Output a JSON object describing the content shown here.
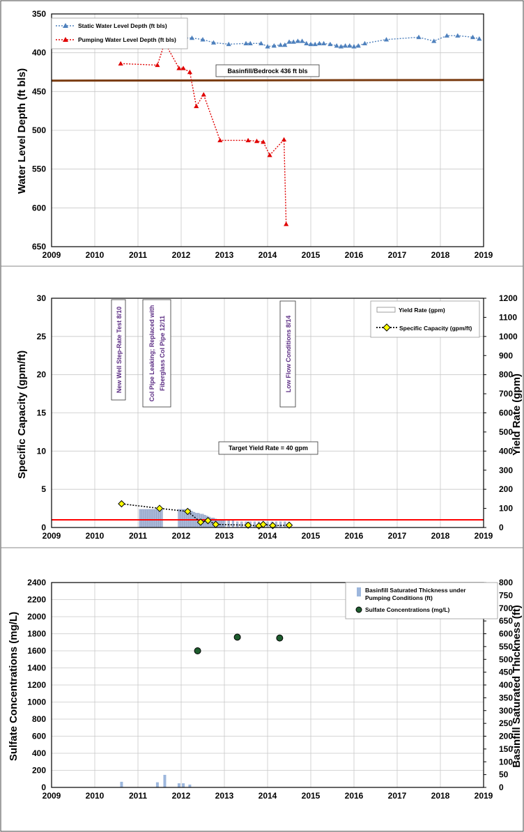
{
  "charts": [
    {
      "ylabel": "Water Level Depth (ft bls)",
      "y_ticks": [
        "350",
        "400",
        "450",
        "500",
        "550",
        "600",
        "650"
      ],
      "x_ticks": [
        "2009",
        "2010",
        "2011",
        "2012",
        "2013",
        "2014",
        "2015",
        "2016",
        "2017",
        "2018",
        "2019"
      ],
      "legend": [
        "Static Water Level Depth (ft bls)",
        "Pumping Water Level Depth (ft bls)"
      ],
      "annotations": [
        "Basinfill/Bedrock 436 ft bls"
      ]
    },
    {
      "ylabel_left": "Specific Capacity (gpm/ft)",
      "ylabel_right": "Yield Rate (gpm)",
      "y_ticks_left": [
        "0",
        "5",
        "10",
        "15",
        "20",
        "25",
        "30"
      ],
      "y_ticks_right": [
        "0",
        "100",
        "200",
        "300",
        "400",
        "500",
        "600",
        "700",
        "800",
        "900",
        "1000",
        "1100",
        "1200"
      ],
      "x_ticks": [
        "2009",
        "2010",
        "2011",
        "2012",
        "2013",
        "2014",
        "2015",
        "2016",
        "2017",
        "2018",
        "2019"
      ],
      "legend": [
        "Yield Rate (gpm)",
        "Specific Capacity (gpm/ft)"
      ],
      "annotations": [
        "New Well Step-Rate Test 8/10",
        "Col Pipe Leaking; Replaced with",
        "Fiberglass Col Pipe 12/11",
        "Low Flow Conditions 8/14",
        "Target Yield Rate = 40 gpm"
      ]
    },
    {
      "ylabel_left": "Sulfate Concentrations (mg/L)",
      "ylabel_right": "Basinfill Saturated Thickness (ft)",
      "y_ticks_left": [
        "0",
        "200",
        "400",
        "600",
        "800",
        "1000",
        "1200",
        "1400",
        "1600",
        "1800",
        "2000",
        "2200",
        "2400"
      ],
      "y_ticks_right": [
        "0",
        "50",
        "100",
        "150",
        "200",
        "250",
        "300",
        "350",
        "400",
        "450",
        "500",
        "550",
        "600",
        "650",
        "700",
        "750",
        "800"
      ],
      "x_ticks": [
        "2009",
        "2010",
        "2011",
        "2012",
        "2013",
        "2014",
        "2015",
        "2016",
        "2017",
        "2018",
        "2019"
      ],
      "legend": [
        "Basinfill Saturated Thickness under",
        "Pumping Conditions (ft)",
        "Sulfate Concentrations (mg/L)"
      ]
    }
  ],
  "chart_data": [
    {
      "type": "line",
      "xlabel": "",
      "ylabel": "Water Level Depth (ft bls)",
      "xlim": [
        2009,
        2019
      ],
      "ylim": [
        650,
        350
      ],
      "y_inverted": true,
      "grid": true,
      "legend_position": "top-left",
      "colors": {
        "static": "#4f81bd",
        "pumping": "#e00000",
        "bedrock": "#7a3b10"
      },
      "series": [
        {
          "name": "Static Water Level Depth (ft bls)",
          "x": [
            2011.55,
            2011.75,
            2012.0,
            2012.25,
            2012.5,
            2012.75,
            2013.1,
            2013.5,
            2013.6,
            2013.85,
            2014.0,
            2014.15,
            2014.3,
            2014.4,
            2014.5,
            2014.6,
            2014.7,
            2014.8,
            2014.9,
            2015.0,
            2015.1,
            2015.2,
            2015.3,
            2015.45,
            2015.6,
            2015.7,
            2015.8,
            2015.9,
            2016.0,
            2016.1,
            2016.25,
            2016.75,
            2017.5,
            2017.85,
            2018.15,
            2018.4,
            2018.75,
            2018.9
          ],
          "y": [
            381,
            381,
            381,
            381,
            383,
            387,
            389,
            388,
            388,
            388,
            392,
            391,
            390,
            390,
            386,
            386,
            385,
            385,
            388,
            389,
            389,
            388,
            388,
            389,
            391,
            392,
            391,
            391,
            392,
            391,
            388,
            383,
            380,
            385,
            378,
            378,
            380,
            382
          ]
        },
        {
          "name": "Pumping Water Level Depth (ft bls)",
          "x": [
            2010.6,
            2011.45,
            2011.62,
            2011.95,
            2012.05,
            2012.2,
            2012.35,
            2012.52,
            2012.9,
            2013.55,
            2013.75,
            2013.9,
            2014.05,
            2014.38,
            2014.43
          ],
          "y": [
            414,
            416,
            387,
            420,
            420,
            425,
            469,
            454,
            513,
            513,
            514,
            515,
            532,
            512,
            621
          ]
        }
      ],
      "reference_lines": [
        {
          "label": "Basinfill/Bedrock 436 ft bls",
          "y": 436
        }
      ]
    },
    {
      "type": "bar",
      "xlabel": "",
      "ylabel": "Specific Capacity (gpm/ft)",
      "ylabel_right": "Yield Rate (gpm)",
      "xlim": [
        2009,
        2019
      ],
      "ylim": [
        0,
        30
      ],
      "ylim_right": [
        0,
        1200
      ],
      "grid": true,
      "legend_position": "top-right",
      "colors": {
        "yield": "#a9b8d8",
        "specific": "#ffff00",
        "target": "#ff0000"
      },
      "series": [
        {
          "name": "Yield Rate (gpm)",
          "axis": "right",
          "x": [
            2011.05,
            2011.1,
            2011.15,
            2011.2,
            2011.25,
            2011.3,
            2011.35,
            2011.4,
            2011.45,
            2011.5,
            2011.55,
            2011.95,
            2012.0,
            2012.05,
            2012.1,
            2012.15,
            2012.2,
            2012.25,
            2012.3,
            2012.35,
            2012.4,
            2012.45,
            2012.5,
            2012.55,
            2012.6,
            2012.65,
            2012.7,
            2012.75,
            2012.8,
            2012.85,
            2012.9,
            2012.95,
            2013.0,
            2013.1,
            2013.2,
            2013.3,
            2013.4,
            2013.5,
            2013.6,
            2013.7,
            2013.8,
            2013.9,
            2014.0,
            2014.1,
            2014.2,
            2014.3,
            2014.4
          ],
          "y": [
            95,
            95,
            95,
            95,
            95,
            95,
            95,
            95,
            95,
            95,
            95,
            95,
            95,
            95,
            95,
            95,
            95,
            85,
            80,
            75,
            75,
            70,
            70,
            65,
            60,
            55,
            50,
            50,
            45,
            40,
            40,
            40,
            35,
            35,
            35,
            30,
            30,
            30,
            30,
            30,
            30,
            30,
            30,
            30,
            30,
            30,
            30
          ]
        },
        {
          "name": "Specific Capacity (gpm/ft)",
          "axis": "left",
          "x": [
            2010.62,
            2011.5,
            2012.15,
            2012.45,
            2012.62,
            2012.8,
            2013.55,
            2013.8,
            2013.9,
            2014.12,
            2014.5
          ],
          "y": [
            3.1,
            2.5,
            2.1,
            0.7,
            0.9,
            0.4,
            0.3,
            0.2,
            0.4,
            0.25,
            0.3
          ]
        }
      ],
      "reference_lines": [
        {
          "label": "Target Yield Rate = 40 gpm",
          "y_right": 40
        }
      ]
    },
    {
      "type": "scatter",
      "xlabel": "",
      "ylabel": "Sulfate Concentrations (mg/L)",
      "ylabel_right": "Basinfill Saturated Thickness (ft)",
      "xlim": [
        2009,
        2019
      ],
      "ylim": [
        0,
        2400
      ],
      "ylim_right": [
        0,
        800
      ],
      "grid": true,
      "legend_position": "top-right",
      "colors": {
        "thickness": "#9db7dd",
        "sulfate": "#1e5c2e"
      },
      "series": [
        {
          "name": "Basinfill Saturated Thickness under Pumping Conditions (ft)",
          "axis": "right",
          "x": [
            2010.62,
            2011.45,
            2011.62,
            2011.95,
            2012.05,
            2012.2,
            2012.35,
            2012.52,
            2012.9,
            2013.55,
            2013.75,
            2013.9,
            2014.05,
            2014.38,
            2014.43
          ],
          "y": [
            22,
            20,
            49,
            16,
            16,
            11,
            0,
            0,
            0,
            0,
            0,
            0,
            0,
            0,
            0
          ]
        },
        {
          "name": "Sulfate Concentrations (mg/L)",
          "axis": "left",
          "x": [
            2012.38,
            2013.3,
            2014.28
          ],
          "y": [
            1600,
            1760,
            1750
          ]
        }
      ]
    }
  ]
}
